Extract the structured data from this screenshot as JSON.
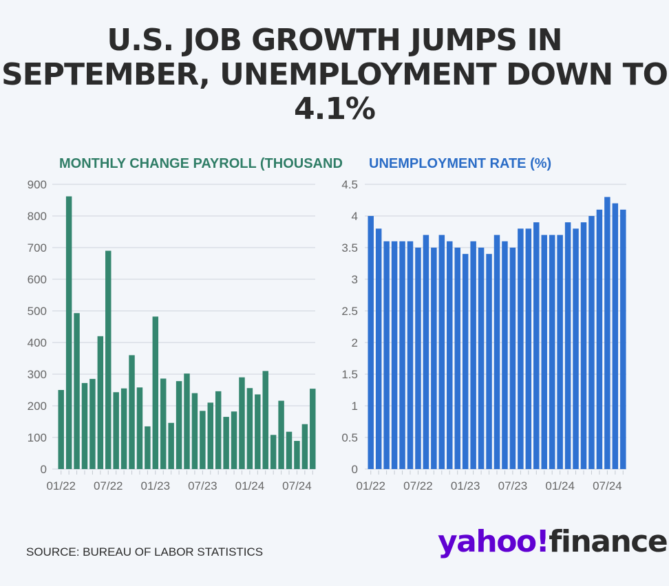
{
  "headline": "U.S. JOB GROWTH JUMPS IN SEPTEMBER, UNEMPLOYMENT DOWN TO 4.1%",
  "source": "SOURCE: BUREAU OF LABOR STATISTICS",
  "logo": {
    "yahoo": "yahoo!",
    "finance": "finance",
    "brand_color": "#6001d2"
  },
  "colors": {
    "payroll_bar": "#34866f",
    "unemployment_bar": "#2f71d1",
    "grid": "#d5dae2",
    "axis_text": "#666666"
  },
  "chart_data": [
    {
      "type": "bar",
      "title": "MONTHLY CHANGE PAYROLL (THOUSANDS)",
      "color": "#34866f",
      "ylim": [
        0,
        900
      ],
      "yticks": [
        "0",
        "100",
        "200",
        "300",
        "400",
        "500",
        "600",
        "700",
        "800",
        "900"
      ],
      "xtick_labels": [
        "01/22",
        "07/22",
        "01/23",
        "07/23",
        "01/24",
        "07/24"
      ],
      "grid": true,
      "categories": [
        "01/22",
        "02/22",
        "03/22",
        "04/22",
        "05/22",
        "06/22",
        "07/22",
        "08/22",
        "09/22",
        "10/22",
        "11/22",
        "12/22",
        "01/23",
        "02/23",
        "03/23",
        "04/23",
        "05/23",
        "06/23",
        "07/23",
        "08/23",
        "09/23",
        "10/23",
        "11/23",
        "12/23",
        "01/24",
        "02/24",
        "03/24",
        "04/24",
        "05/24",
        "06/24",
        "07/24",
        "08/24",
        "09/24"
      ],
      "values": [
        250,
        862,
        493,
        272,
        285,
        420,
        690,
        243,
        255,
        360,
        258,
        135,
        482,
        286,
        146,
        278,
        302,
        240,
        184,
        210,
        246,
        165,
        182,
        290,
        256,
        236,
        310,
        108,
        216,
        118,
        89,
        142,
        254
      ]
    },
    {
      "type": "bar",
      "title": "UNEMPLOYMENT RATE (%)",
      "color": "#2f71d1",
      "ylim": [
        0,
        4.5
      ],
      "yticks": [
        "0",
        "0.5",
        "1",
        "1.5",
        "2",
        "2.5",
        "3",
        "3.5",
        "4",
        "4.5"
      ],
      "xtick_labels": [
        "01/22",
        "07/22",
        "01/23",
        "07/23",
        "01/24",
        "07/24"
      ],
      "grid": true,
      "categories": [
        "01/22",
        "02/22",
        "03/22",
        "04/22",
        "05/22",
        "06/22",
        "07/22",
        "08/22",
        "09/22",
        "10/22",
        "11/22",
        "12/22",
        "01/23",
        "02/23",
        "03/23",
        "04/23",
        "05/23",
        "06/23",
        "07/23",
        "08/23",
        "09/23",
        "10/23",
        "11/23",
        "12/23",
        "01/24",
        "02/24",
        "03/24",
        "04/24",
        "05/24",
        "06/24",
        "07/24",
        "08/24",
        "09/24"
      ],
      "values": [
        4.0,
        3.8,
        3.6,
        3.6,
        3.6,
        3.6,
        3.5,
        3.7,
        3.5,
        3.7,
        3.6,
        3.5,
        3.4,
        3.6,
        3.5,
        3.4,
        3.7,
        3.6,
        3.5,
        3.8,
        3.8,
        3.9,
        3.7,
        3.7,
        3.7,
        3.9,
        3.8,
        3.9,
        4.0,
        4.1,
        4.3,
        4.2,
        4.1
      ]
    }
  ]
}
